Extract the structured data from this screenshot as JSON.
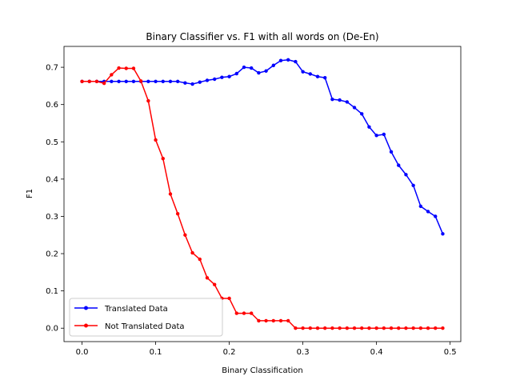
{
  "chart_data": {
    "type": "line",
    "title": "Binary Classifier vs. F1 with all words on (De-En)",
    "xlabel": "Binary Classification",
    "ylabel": "F1",
    "xlim": [
      -0.0245,
      0.5145
    ],
    "ylim": [
      -0.036,
      0.756
    ],
    "xticks": [
      0.0,
      0.1,
      0.2,
      0.3,
      0.4,
      0.5
    ],
    "xtick_labels": [
      "0.0",
      "0.1",
      "0.2",
      "0.3",
      "0.4",
      "0.5"
    ],
    "yticks": [
      0.0,
      0.1,
      0.2,
      0.3,
      0.4,
      0.5,
      0.6,
      0.7
    ],
    "ytick_labels": [
      "0.0",
      "0.1",
      "0.2",
      "0.3",
      "0.4",
      "0.5",
      "0.6",
      "0.7"
    ],
    "grid": false,
    "legend_position": "lower-left",
    "x": [
      0.0,
      0.01,
      0.02,
      0.03,
      0.04,
      0.05,
      0.06,
      0.07,
      0.08,
      0.09,
      0.1,
      0.11,
      0.12,
      0.13,
      0.14,
      0.15,
      0.16,
      0.17,
      0.18,
      0.19,
      0.2,
      0.21,
      0.22,
      0.23,
      0.24,
      0.25,
      0.26,
      0.27,
      0.28,
      0.29,
      0.3,
      0.31,
      0.32,
      0.33,
      0.34,
      0.35,
      0.36,
      0.37,
      0.38,
      0.39,
      0.4,
      0.41,
      0.42,
      0.43,
      0.44,
      0.45,
      0.46,
      0.47,
      0.48,
      0.49
    ],
    "series": [
      {
        "name": "Translated Data",
        "color": "#0000ff",
        "values": [
          0.662,
          0.662,
          0.662,
          0.662,
          0.662,
          0.662,
          0.662,
          0.662,
          0.662,
          0.662,
          0.662,
          0.662,
          0.662,
          0.662,
          0.658,
          0.655,
          0.66,
          0.665,
          0.668,
          0.673,
          0.675,
          0.683,
          0.7,
          0.698,
          0.685,
          0.69,
          0.705,
          0.718,
          0.72,
          0.715,
          0.688,
          0.682,
          0.675,
          0.672,
          0.614,
          0.612,
          0.607,
          0.592,
          0.575,
          0.54,
          0.517,
          0.52,
          0.473,
          0.437,
          0.412,
          0.383,
          0.327,
          0.313,
          0.3,
          0.253
        ]
      },
      {
        "name": "Not Translated Data",
        "color": "#ff0000",
        "values": [
          0.662,
          0.662,
          0.662,
          0.657,
          0.68,
          0.698,
          0.697,
          0.697,
          0.663,
          0.61,
          0.505,
          0.455,
          0.36,
          0.307,
          0.25,
          0.202,
          0.185,
          0.135,
          0.117,
          0.08,
          0.08,
          0.04,
          0.04,
          0.04,
          0.02,
          0.02,
          0.02,
          0.02,
          0.02,
          0.0,
          0.0,
          0.0,
          0.0,
          0.0,
          0.0,
          0.0,
          0.0,
          0.0,
          0.0,
          0.0,
          0.0,
          0.0,
          0.0,
          0.0,
          0.0,
          0.0,
          0.0,
          0.0,
          0.0,
          0.0
        ]
      }
    ]
  }
}
